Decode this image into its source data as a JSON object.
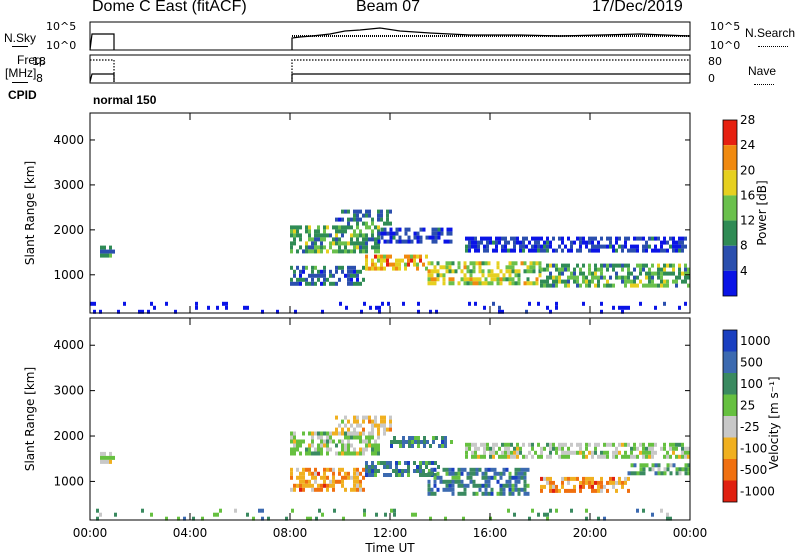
{
  "header": {
    "station": "Dome C East (fitACF)",
    "beam": "Beam 07",
    "date": "17/Dec/2019"
  },
  "side_labels": {
    "nsky": "N.Sky",
    "nsky_ticks": [
      "10^5",
      "10^0"
    ],
    "nsearch": "N.Search",
    "nsearch_ticks": [
      "10^5",
      "10^0"
    ],
    "freq": "Freq.",
    "freq_unit": "[MHz]",
    "freq_ticks": [
      "18",
      "8"
    ],
    "nave": "Nave",
    "nave_ticks": [
      "80",
      "0"
    ],
    "cpid": "CPID",
    "cpid_value": "normal 150"
  },
  "chart_data": [
    {
      "type": "heatmap",
      "panel": "power",
      "ylabel": "Slant Range [km]",
      "xlabel": "",
      "ylim": [
        150,
        4600
      ],
      "yticks": [
        "1000",
        "2000",
        "3000",
        "4000"
      ],
      "colorbar_label": "Power [dB]",
      "colorbar_ticks": [
        "4",
        "8",
        "12",
        "16",
        "20",
        "24",
        "28"
      ],
      "colorbar_colors": [
        "#0a14e6",
        "#2b4fae",
        "#2f8b55",
        "#6ac04c",
        "#e6d020",
        "#f08a10",
        "#e62010"
      ],
      "echo_bands": [
        {
          "t0": 0.4,
          "t1": 1.0,
          "r0": 1450,
          "r1": 1650,
          "level": 2
        },
        {
          "t0": 8.0,
          "t1": 11.5,
          "r0": 1500,
          "r1": 2100,
          "level": 3
        },
        {
          "t0": 8.0,
          "t1": 11.0,
          "r0": 800,
          "r1": 1200,
          "level": 2
        },
        {
          "t0": 9.8,
          "t1": 12.0,
          "r0": 2100,
          "r1": 2450,
          "level": 2
        },
        {
          "t0": 11.0,
          "t1": 13.5,
          "r0": 1100,
          "r1": 1450,
          "level": 5
        },
        {
          "t0": 13.5,
          "t1": 18.0,
          "r0": 850,
          "r1": 1300,
          "level": 4
        },
        {
          "t0": 15.0,
          "t1": 24.0,
          "r0": 1550,
          "r1": 1850,
          "level": 1
        },
        {
          "t0": 18.0,
          "t1": 24.0,
          "r0": 750,
          "r1": 1250,
          "level": 3
        },
        {
          "t0": 11.5,
          "t1": 14.5,
          "r0": 1700,
          "r1": 2050,
          "level": 1
        },
        {
          "t0": 0.0,
          "t1": 24.0,
          "r0": 150,
          "r1": 400,
          "level": 0
        }
      ]
    },
    {
      "type": "heatmap",
      "panel": "velocity",
      "ylabel": "Slant Range [km]",
      "xlabel": "Time UT",
      "ylim": [
        150,
        4600
      ],
      "yticks": [
        "1000",
        "2000",
        "3000",
        "4000"
      ],
      "xticks": [
        "00:00",
        "04:00",
        "08:00",
        "12:00",
        "16:00",
        "20:00",
        "00:00"
      ],
      "colorbar_label": "Velocity [m s⁻¹]",
      "colorbar_ticks": [
        "1000",
        "500",
        "100",
        "25",
        "-25",
        "-100",
        "-500",
        "-1000"
      ],
      "colorbar_colors": [
        "#1a3fc0",
        "#3c6ab0",
        "#3a8a60",
        "#66c040",
        "#c8c8c8",
        "#f0b020",
        "#f07010",
        "#e02010"
      ],
      "echo_bands": [
        {
          "t0": 0.4,
          "t1": 1.0,
          "r0": 1450,
          "r1": 1650,
          "level": 4
        },
        {
          "t0": 8.0,
          "t1": 11.5,
          "r0": 1650,
          "r1": 2100,
          "level": 4
        },
        {
          "t0": 8.0,
          "t1": 11.0,
          "r0": 800,
          "r1": 1300,
          "level": 6
        },
        {
          "t0": 9.8,
          "t1": 12.0,
          "r0": 2050,
          "r1": 2450,
          "level": 5
        },
        {
          "t0": 11.0,
          "t1": 14.0,
          "r0": 1100,
          "r1": 1450,
          "level": 2
        },
        {
          "t0": 13.5,
          "t1": 17.5,
          "r0": 700,
          "r1": 1300,
          "level": 2
        },
        {
          "t0": 15.0,
          "t1": 24.0,
          "r0": 1500,
          "r1": 1850,
          "level": 4
        },
        {
          "t0": 18.0,
          "t1": 21.5,
          "r0": 800,
          "r1": 1100,
          "level": 6
        },
        {
          "t0": 21.5,
          "t1": 24.0,
          "r0": 1150,
          "r1": 1400,
          "level": 3
        },
        {
          "t0": 12.0,
          "t1": 14.5,
          "r0": 1800,
          "r1": 2000,
          "level": 2
        },
        {
          "t0": 0.0,
          "t1": 24.0,
          "r0": 150,
          "r1": 400,
          "level": 3
        }
      ]
    }
  ]
}
